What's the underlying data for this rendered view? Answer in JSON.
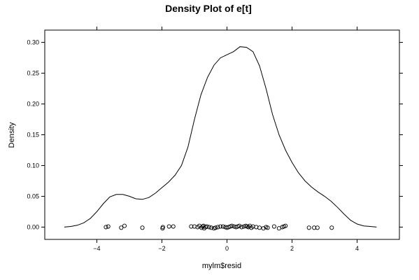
{
  "chart_data": {
    "type": "line",
    "title": "Density Plot of e[t]",
    "xlabel": "mylm$resid",
    "ylabel": "Density",
    "xlim": [
      -5.6,
      5.3
    ],
    "ylim": [
      -0.02,
      0.32
    ],
    "x_ticks": [
      -4,
      -2,
      0,
      2,
      4
    ],
    "x_tick_labels": [
      "−4",
      "−2",
      "0",
      "2",
      "4"
    ],
    "y_ticks": [
      0.0,
      0.05,
      0.1,
      0.15,
      0.2,
      0.25,
      0.3
    ],
    "y_tick_labels": [
      "0.00",
      "0.05",
      "0.10",
      "0.15",
      "0.20",
      "0.25",
      "0.30"
    ],
    "grid": false,
    "series": [
      {
        "x": [
          -5.0,
          -4.8,
          -4.6,
          -4.4,
          -4.2,
          -4.0,
          -3.8,
          -3.6,
          -3.4,
          -3.2,
          -3.0,
          -2.8,
          -2.6,
          -2.4,
          -2.2,
          -2.0,
          -1.8,
          -1.6,
          -1.4,
          -1.2,
          -1.0,
          -0.8,
          -0.6,
          -0.4,
          -0.2,
          0.0,
          0.2,
          0.4,
          0.6,
          0.8,
          1.0,
          1.2,
          1.4,
          1.6,
          1.8,
          2.0,
          2.2,
          2.4,
          2.6,
          2.8,
          3.0,
          3.2,
          3.4,
          3.6,
          3.8,
          4.0,
          4.2,
          4.4,
          4.6
        ],
        "y": [
          0.0,
          0.001,
          0.003,
          0.007,
          0.014,
          0.025,
          0.038,
          0.049,
          0.053,
          0.053,
          0.05,
          0.046,
          0.045,
          0.048,
          0.055,
          0.064,
          0.073,
          0.084,
          0.1,
          0.13,
          0.175,
          0.215,
          0.243,
          0.263,
          0.275,
          0.28,
          0.285,
          0.293,
          0.292,
          0.285,
          0.262,
          0.225,
          0.183,
          0.15,
          0.125,
          0.105,
          0.088,
          0.075,
          0.065,
          0.057,
          0.05,
          0.042,
          0.032,
          0.021,
          0.011,
          0.005,
          0.002,
          0.001,
          0.0
        ]
      }
    ],
    "rug_points": {
      "x": [
        -3.72,
        -3.65,
        -3.25,
        -3.15,
        -2.6,
        -1.98,
        -1.97,
        -1.78,
        -1.65,
        -1.1,
        -1.0,
        -0.9,
        -0.85,
        -0.78,
        -0.75,
        -0.72,
        -0.7,
        -0.66,
        -0.62,
        -0.55,
        -0.48,
        -0.4,
        -0.35,
        -0.28,
        -0.2,
        -0.12,
        -0.05,
        0.0,
        0.05,
        0.1,
        0.15,
        0.22,
        0.28,
        0.33,
        0.38,
        0.45,
        0.52,
        0.58,
        0.62,
        0.66,
        0.7,
        0.75,
        0.8,
        0.9,
        1.0,
        1.12,
        1.2,
        1.25,
        1.45,
        1.6,
        1.7,
        1.75,
        1.8,
        2.52,
        2.68,
        2.78,
        3.22
      ],
      "y": [
        0.0,
        0.001,
        -0.001,
        0.002,
        -0.001,
        -0.002,
        0.0,
        0.001,
        0.001,
        0.001,
        0.001,
        0.0,
        0.002,
        -0.001,
        0.001,
        0.002,
        -0.002,
        0.0,
        0.001,
        0.0,
        -0.001,
        -0.002,
        -0.001,
        0.0,
        0.001,
        0.001,
        0.0,
        -0.001,
        0.0,
        0.001,
        0.002,
        0.001,
        0.0,
        0.001,
        0.002,
        0.0,
        0.001,
        0.002,
        0.001,
        0.0,
        0.002,
        -0.001,
        0.001,
        0.0,
        -0.001,
        -0.002,
        0.0,
        -0.001,
        0.001,
        -0.002,
        0.0,
        0.001,
        0.002,
        -0.001,
        -0.001,
        -0.001,
        -0.001
      ]
    }
  }
}
